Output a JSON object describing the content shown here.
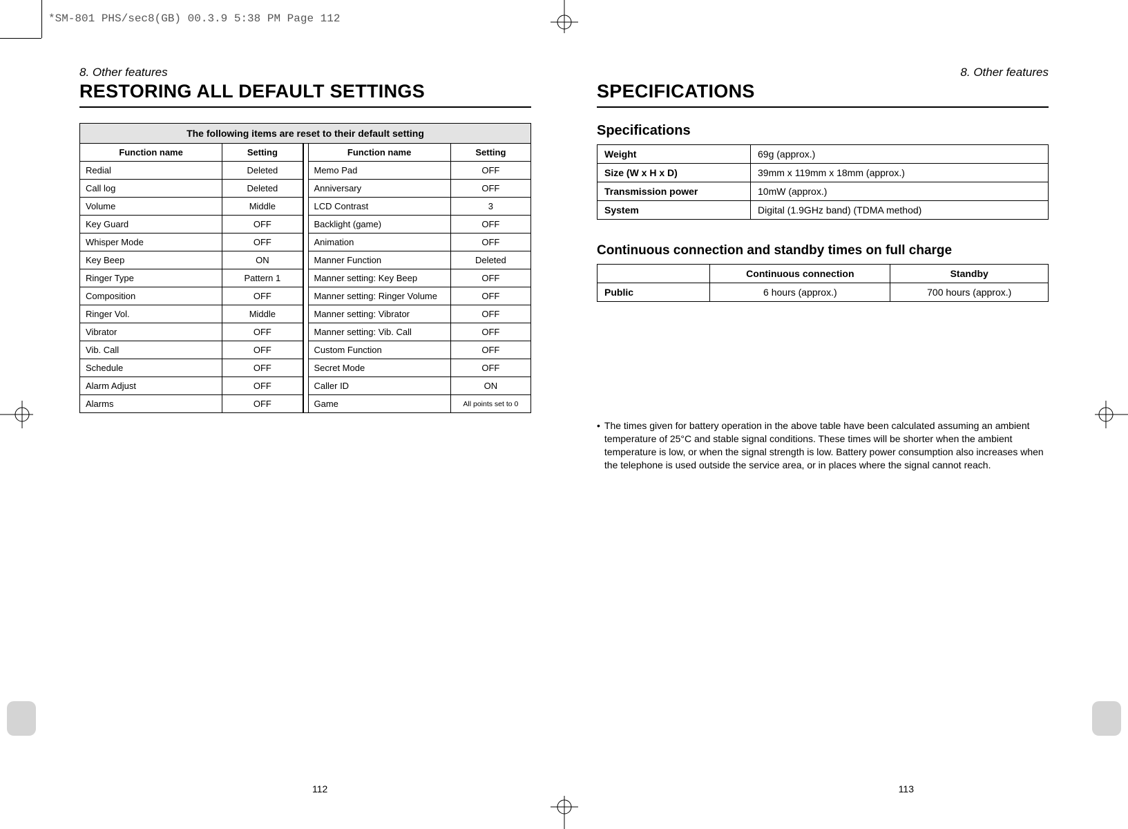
{
  "meta_header": "*SM-801 PHS/sec8(GB)  00.3.9 5:38 PM  Page 112",
  "chapter_label": "8. Other features",
  "left_title": "RESTORING ALL DEFAULT SETTINGS",
  "right_title": "SPECIFICATIONS",
  "defaults_caption": "The following items are reset to their default setting",
  "defaults_headers": {
    "fn": "Function name",
    "set": "Setting"
  },
  "defaults_left": [
    {
      "fn": "Redial",
      "set": "Deleted"
    },
    {
      "fn": "Call log",
      "set": "Deleted"
    },
    {
      "fn": "Volume",
      "set": "Middle"
    },
    {
      "fn": "Key Guard",
      "set": "OFF"
    },
    {
      "fn": "Whisper Mode",
      "set": "OFF"
    },
    {
      "fn": "Key Beep",
      "set": "ON"
    },
    {
      "fn": "Ringer Type",
      "set": "Pattern 1"
    },
    {
      "fn": "Composition",
      "set": "OFF"
    },
    {
      "fn": "Ringer Vol.",
      "set": "Middle"
    },
    {
      "fn": "Vibrator",
      "set": "OFF"
    },
    {
      "fn": "Vib. Call",
      "set": "OFF"
    },
    {
      "fn": "Schedule",
      "set": "OFF"
    },
    {
      "fn": "Alarm Adjust",
      "set": "OFF"
    },
    {
      "fn": "Alarms",
      "set": "OFF"
    }
  ],
  "defaults_right": [
    {
      "fn": "Memo Pad",
      "set": "OFF"
    },
    {
      "fn": "Anniversary",
      "set": "OFF"
    },
    {
      "fn": "LCD Contrast",
      "set": "3"
    },
    {
      "fn": "Backlight (game)",
      "set": "OFF"
    },
    {
      "fn": "Animation",
      "set": "OFF"
    },
    {
      "fn": "Manner Function",
      "set": "Deleted"
    },
    {
      "fn": "Manner setting: Key Beep",
      "set": "OFF"
    },
    {
      "fn": "Manner setting: Ringer Volume",
      "set": "OFF"
    },
    {
      "fn": "Manner setting: Vibrator",
      "set": "OFF"
    },
    {
      "fn": "Manner setting: Vib. Call",
      "set": "OFF"
    },
    {
      "fn": "Custom Function",
      "set": "OFF"
    },
    {
      "fn": "Secret Mode",
      "set": "OFF"
    },
    {
      "fn": "Caller ID",
      "set": "ON"
    },
    {
      "fn": "Game",
      "set": "All points set to 0",
      "small": true
    }
  ],
  "spec_head": "Specifications",
  "spec_rows": [
    {
      "k": "Weight",
      "v": "69g (approx.)"
    },
    {
      "k": "Size (W x H x D)",
      "v": "39mm x 119mm x 18mm (approx.)"
    },
    {
      "k": "Transmission power",
      "v": "10mW (approx.)"
    },
    {
      "k": "System",
      "v": "Digital (1.9GHz band) (TDMA method)"
    }
  ],
  "conn_head": "Continuous connection and standby times on full charge",
  "conn_headers": {
    "c1": "",
    "c2": "Continuous connection",
    "c3": "Standby"
  },
  "conn_rows": [
    {
      "k": "Public",
      "c": "6 hours (approx.)",
      "s": "700 hours (approx.)"
    }
  ],
  "note_bullet": "•",
  "note_text": "The times given for battery operation in the above table have been calculated assuming an ambient temperature of 25°C and stable signal conditions. These times will be shorter when the ambient temperature is low, or when the signal strength is low. Battery power consumption also increases when the telephone is used outside the service area, or in places where the signal cannot reach.",
  "page_left_num": "112",
  "page_right_num": "113",
  "colors": {
    "border": "#000000",
    "caption_bg": "#e3e3e3",
    "thumb_bg": "#d4d4d4",
    "background": "#ffffff"
  },
  "fonts": {
    "body": "Arial, Helvetica, sans-serif",
    "mono": "Courier New, monospace",
    "title_size_pt": 20,
    "body_size_pt": 10.5
  }
}
